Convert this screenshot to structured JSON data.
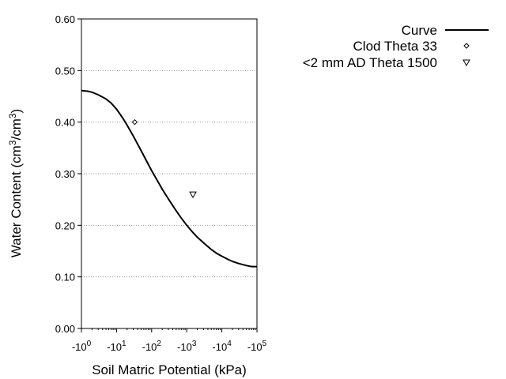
{
  "chart_data": {
    "type": "scatter",
    "title": "",
    "xlabel": "Soil Matric Potential (kPa)",
    "ylabel": {
      "main": "Water Content (cm",
      "sup1": "3",
      "mid": "/cm",
      "sup2": "3",
      "end": ")"
    },
    "x_scale": "log",
    "x_axis_sign": "negative",
    "xlim": [
      1,
      100000
    ],
    "ylim": [
      0.0,
      0.6
    ],
    "y_ticks": [
      "0.00",
      "0.10",
      "0.20",
      "0.30",
      "0.40",
      "0.50",
      "0.60"
    ],
    "x_ticks": [
      {
        "value": 1,
        "base": "-10",
        "exp": "0"
      },
      {
        "value": 10,
        "base": "-10",
        "exp": "1"
      },
      {
        "value": 100,
        "base": "-10",
        "exp": "2"
      },
      {
        "value": 1000,
        "base": "-10",
        "exp": "3"
      },
      {
        "value": 10000,
        "base": "-10",
        "exp": "4"
      },
      {
        "value": 100000,
        "base": "-10",
        "exp": "5"
      }
    ],
    "grid": {
      "horizontal": true,
      "style": "dotted",
      "vertical": false
    },
    "legend_position": "top-right, outside plot",
    "series": [
      {
        "name": "Curve",
        "type": "line",
        "color": "#000000",
        "x": [
          1,
          1.5,
          2,
          3,
          5,
          7,
          10,
          15,
          20,
          30,
          50,
          70,
          100,
          150,
          200,
          300,
          500,
          700,
          1000,
          1500,
          2000,
          3000,
          5000,
          7000,
          10000,
          15000,
          20000,
          30000,
          50000,
          70000,
          100000
        ],
        "y": [
          0.461,
          0.46,
          0.458,
          0.453,
          0.445,
          0.437,
          0.425,
          0.408,
          0.394,
          0.373,
          0.345,
          0.326,
          0.306,
          0.285,
          0.27,
          0.251,
          0.228,
          0.214,
          0.2,
          0.186,
          0.177,
          0.166,
          0.153,
          0.146,
          0.14,
          0.134,
          0.13,
          0.126,
          0.122,
          0.12,
          0.12
        ]
      },
      {
        "name": "Clod Theta 33",
        "type": "scatter",
        "marker": "diamond",
        "color": "#000000",
        "x": [
          33
        ],
        "y": [
          0.4
        ]
      },
      {
        "name": "<2 mm AD Theta 1500",
        "type": "scatter",
        "marker": "triangle-down",
        "color": "#000000",
        "x": [
          1500
        ],
        "y": [
          0.26
        ]
      }
    ]
  }
}
